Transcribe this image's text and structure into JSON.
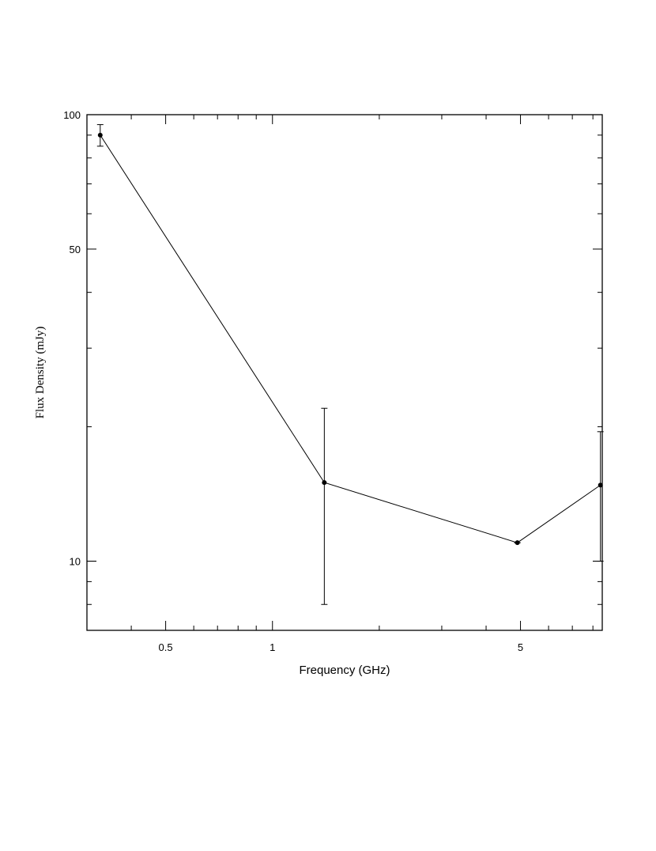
{
  "chart_data": {
    "type": "line",
    "xlabel": "Frequency (GHz)",
    "ylabel": "Flux Density (mJy)",
    "xscale": "log",
    "yscale": "log",
    "xlim": [
      0.3,
      8.5
    ],
    "ylim": [
      7,
      100
    ],
    "x_ticklabels": [
      {
        "value": 0.5,
        "label": "0.5"
      },
      {
        "value": 1,
        "label": "1"
      },
      {
        "value": 5,
        "label": "5"
      }
    ],
    "y_ticklabels": [
      {
        "value": 10,
        "label": "10"
      },
      {
        "value": 50,
        "label": "50"
      },
      {
        "value": 100,
        "label": "100"
      }
    ],
    "grid": false,
    "series": [
      {
        "points": [
          {
            "x": 0.327,
            "y": 90,
            "err_low": 85,
            "err_high": 95
          },
          {
            "x": 1.4,
            "y": 15,
            "err_low": 8,
            "err_high": 22
          },
          {
            "x": 4.9,
            "y": 11,
            "err_low": 11,
            "err_high": 11
          },
          {
            "x": 8.4,
            "y": 14.8,
            "err_low": 10,
            "err_high": 19.5
          }
        ]
      }
    ]
  }
}
